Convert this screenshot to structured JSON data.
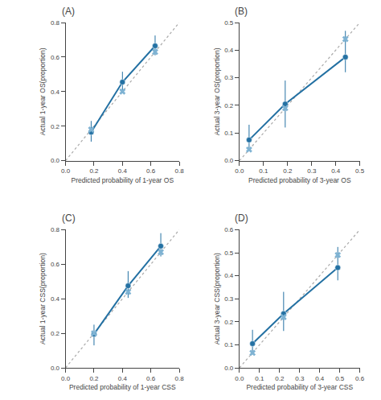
{
  "chart_data": [
    {
      "type": "line",
      "title": "(A)",
      "x_label": "Predicted probability of 1-year OS",
      "y_label": "Actual 1-year OS(proportion)",
      "xlim": [
        0.0,
        0.8
      ],
      "ylim": [
        0.0,
        0.8
      ],
      "xticks": [
        {
          "value": 0.0,
          "label": "0.0"
        },
        0.2,
        0.4,
        0.6,
        0.8
      ],
      "yticks": [
        {
          "value": 0.0,
          "label": "0.0"
        },
        0.2,
        0.4,
        0.6,
        0.8
      ],
      "grid": false,
      "series": [
        {
          "type": "line",
          "line_style": "dotted",
          "color": "#aaaaaa",
          "x": [
            0.0,
            0.8
          ],
          "values": [
            0.0,
            0.8
          ]
        },
        {
          "type": "line",
          "line_style": "solid",
          "marker": "circle",
          "color": "#2471a3",
          "x": [
            0.18,
            0.4,
            0.63
          ],
          "values": [
            0.165,
            0.455,
            0.665
          ],
          "error_low": [
            0.055,
            0.065,
            0.055
          ],
          "error_high": [
            0.065,
            0.06,
            0.06
          ]
        },
        {
          "type": "scatter",
          "marker": "x",
          "color": "#7fb3d3",
          "x": [
            0.18,
            0.4,
            0.63
          ],
          "values": [
            0.18,
            0.4,
            0.63
          ]
        }
      ]
    },
    {
      "type": "line",
      "title": "(B)",
      "x_label": "Predicted probability of 3-year OS",
      "y_label": "Actual 3-year OS(proportion)",
      "xlim": [
        0.0,
        0.5
      ],
      "ylim": [
        0.0,
        0.5
      ],
      "xticks": [
        {
          "value": 0.0,
          "label": "0.0"
        },
        0.1,
        0.2,
        0.3,
        0.4,
        0.5
      ],
      "yticks": [
        {
          "value": 0.0,
          "label": "0.0"
        },
        0.1,
        0.2,
        0.3,
        0.4,
        0.5
      ],
      "grid": false,
      "series": [
        {
          "type": "line",
          "line_style": "dotted",
          "color": "#aaaaaa",
          "x": [
            0.0,
            0.5
          ],
          "values": [
            0.0,
            0.5
          ]
        },
        {
          "type": "line",
          "line_style": "solid",
          "marker": "circle",
          "color": "#2471a3",
          "x": [
            0.04,
            0.19,
            0.44
          ],
          "values": [
            0.075,
            0.205,
            0.375
          ],
          "error_low": [
            0.035,
            0.085,
            0.055
          ],
          "error_high": [
            0.055,
            0.085,
            0.095
          ]
        },
        {
          "type": "scatter",
          "marker": "x",
          "color": "#7fb3d3",
          "x": [
            0.04,
            0.19,
            0.44
          ],
          "values": [
            0.04,
            0.19,
            0.44
          ]
        }
      ]
    },
    {
      "type": "line",
      "title": "(C)",
      "x_label": "Predicted probability of 1-year CSS",
      "y_label": "Actual 1-year CSS(proportion)",
      "xlim": [
        0.0,
        0.8
      ],
      "ylim": [
        0.0,
        0.8
      ],
      "xticks": [
        {
          "value": 0.0,
          "label": "0.0"
        },
        0.2,
        0.4,
        0.6,
        0.8
      ],
      "yticks": [
        {
          "value": 0.0,
          "label": "0.0"
        },
        0.2,
        0.4,
        0.6,
        0.8
      ],
      "grid": false,
      "series": [
        {
          "type": "line",
          "line_style": "dotted",
          "color": "#aaaaaa",
          "x": [
            0.0,
            0.8
          ],
          "values": [
            0.0,
            0.8
          ]
        },
        {
          "type": "line",
          "line_style": "solid",
          "marker": "circle",
          "color": "#2471a3",
          "x": [
            0.2,
            0.44,
            0.67
          ],
          "values": [
            0.195,
            0.475,
            0.705
          ],
          "error_low": [
            0.065,
            0.07,
            0.06
          ],
          "error_high": [
            0.055,
            0.085,
            0.075
          ]
        },
        {
          "type": "scatter",
          "marker": "x",
          "color": "#7fb3d3",
          "x": [
            0.2,
            0.44,
            0.67
          ],
          "values": [
            0.2,
            0.44,
            0.67
          ]
        }
      ]
    },
    {
      "type": "line",
      "title": "(D)",
      "x_label": "Predicted probability of 3-year CSS",
      "y_label": "Actual 3-year CSS(proportion)",
      "xlim": [
        0.0,
        0.6
      ],
      "ylim": [
        0.0,
        0.6
      ],
      "xticks": [
        {
          "value": 0.0,
          "label": "0.0"
        },
        0.1,
        0.2,
        0.3,
        0.4,
        0.5,
        0.6
      ],
      "yticks": [
        {
          "value": 0.0,
          "label": "0.0"
        },
        0.1,
        0.2,
        0.3,
        0.4,
        0.5,
        0.6
      ],
      "grid": false,
      "series": [
        {
          "type": "line",
          "line_style": "dotted",
          "color": "#aaaaaa",
          "x": [
            0.0,
            0.6
          ],
          "values": [
            0.0,
            0.6
          ]
        },
        {
          "type": "line",
          "line_style": "solid",
          "marker": "circle",
          "color": "#2471a3",
          "x": [
            0.065,
            0.22,
            0.49
          ],
          "values": [
            0.105,
            0.235,
            0.435
          ],
          "error_low": [
            0.04,
            0.075,
            0.055
          ],
          "error_high": [
            0.06,
            0.095,
            0.09
          ]
        },
        {
          "type": "scatter",
          "marker": "x",
          "color": "#7fb3d3",
          "x": [
            0.065,
            0.22,
            0.49
          ],
          "values": [
            0.065,
            0.22,
            0.49
          ]
        }
      ]
    }
  ]
}
